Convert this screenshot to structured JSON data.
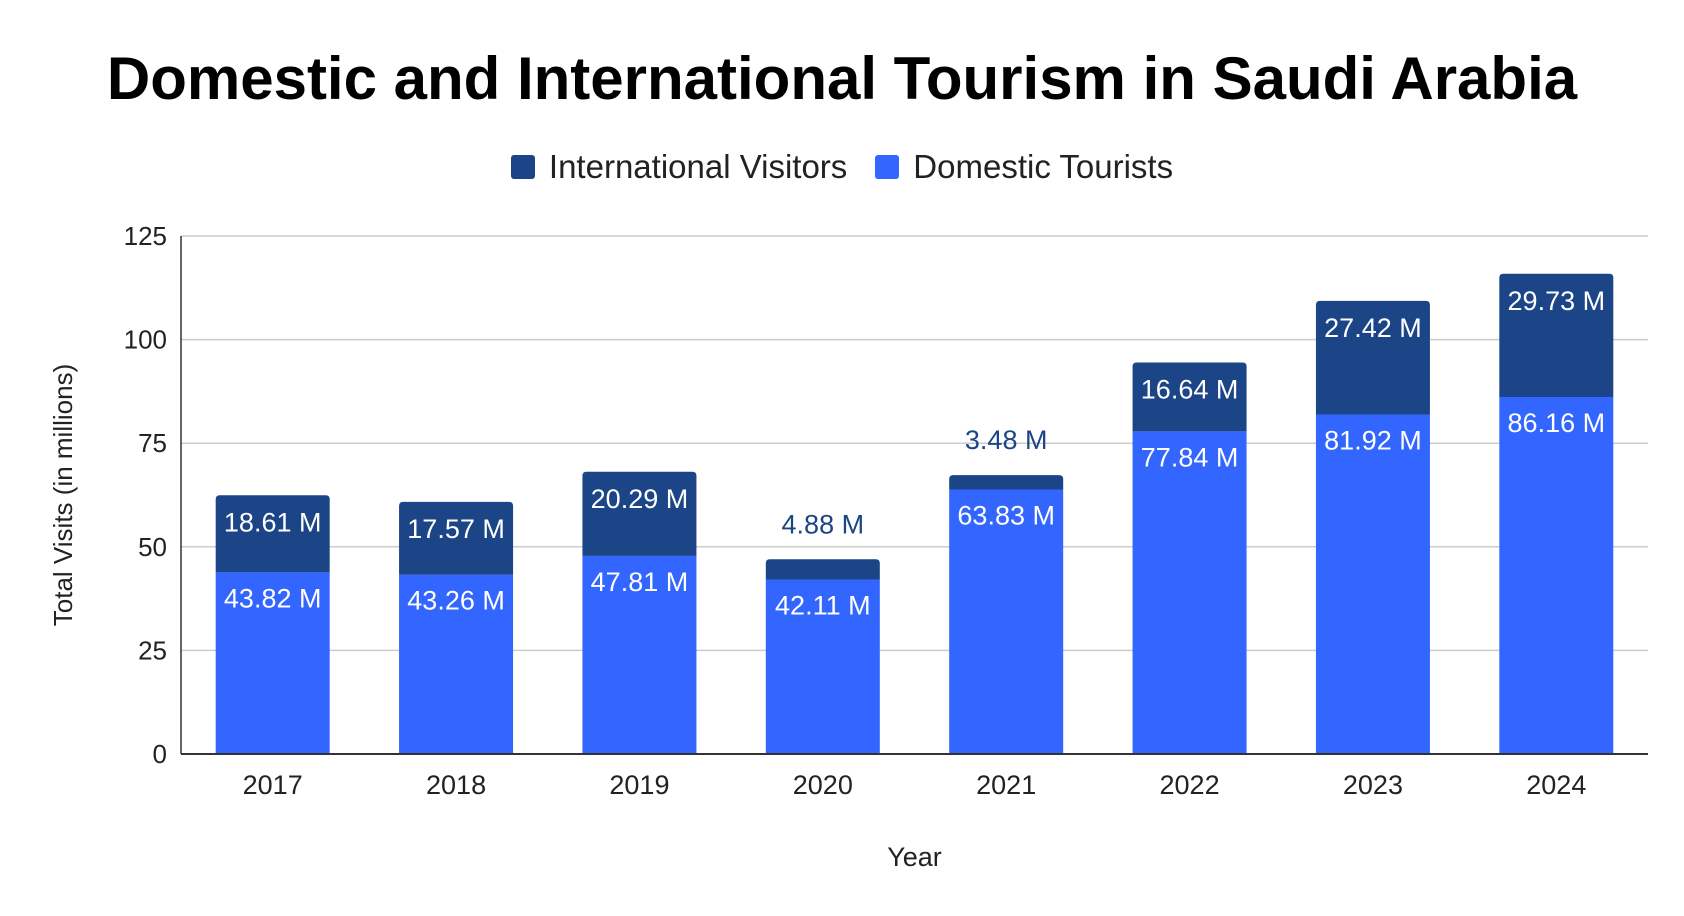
{
  "chart_data": {
    "type": "bar",
    "stacked": true,
    "title": "Domestic and International Tourism in Saudi Arabia",
    "xlabel": "Year",
    "ylabel": "Total Visits (in millions)",
    "ylim": [
      0,
      125
    ],
    "yticks": [
      "0",
      "25",
      "50",
      "75",
      "100",
      "125"
    ],
    "grid": true,
    "legend_position": "top",
    "categories": [
      "2017",
      "2018",
      "2019",
      "2020",
      "2021",
      "2022",
      "2023",
      "2024"
    ],
    "series": [
      {
        "name": "International Visitors",
        "color": "#1c4587",
        "values": [
          18.61,
          17.57,
          20.29,
          4.88,
          3.48,
          16.64,
          27.42,
          29.73
        ],
        "labels": [
          "18.61 M",
          "17.57 M",
          "20.29 M",
          "4.88 M",
          "3.48 M",
          "16.64 M",
          "27.42 M",
          "29.73 M"
        ]
      },
      {
        "name": "Domestic Tourists",
        "color": "#3366ff",
        "values": [
          43.82,
          43.26,
          47.81,
          42.11,
          63.83,
          77.84,
          81.92,
          86.16
        ],
        "labels": [
          "43.82 M",
          "43.26 M",
          "47.81 M",
          "42.11 M",
          "63.83 M",
          "77.84 M",
          "81.92 M",
          "86.16 M"
        ]
      }
    ]
  }
}
